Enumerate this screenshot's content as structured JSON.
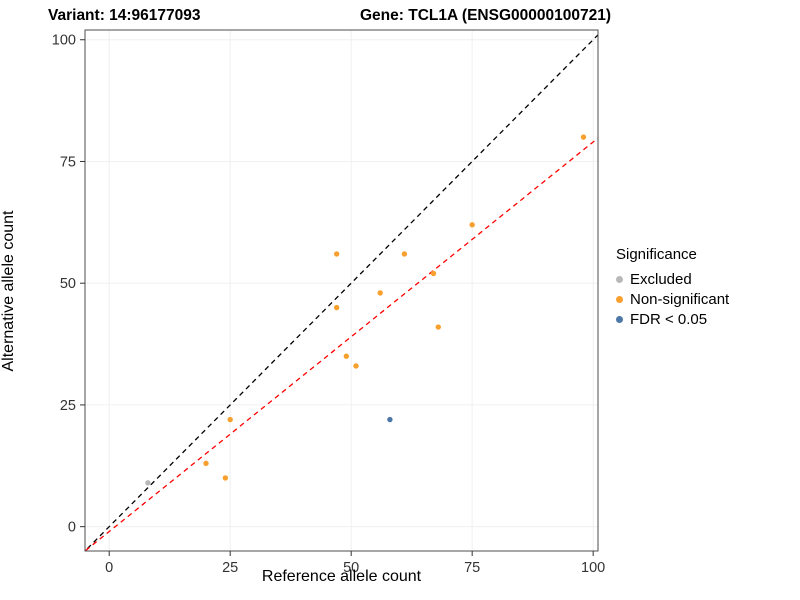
{
  "titles": {
    "variant": "Variant: 14:96177093",
    "gene": "Gene: TCL1A (ENSG00000100721)"
  },
  "chart_data": {
    "type": "scatter",
    "xlabel": "Reference allele count",
    "ylabel": "Alternative allele count",
    "xlim": [
      -5,
      101
    ],
    "ylim": [
      -5,
      102
    ],
    "xticks": [
      0,
      25,
      50,
      75,
      100
    ],
    "yticks": [
      0,
      25,
      50,
      75,
      100
    ],
    "grid": "faint",
    "colors": {
      "excluded": "#B8B8B8",
      "non_significant": "#F8A02E",
      "fdr": "#4C77A6",
      "identity_line": "#000000",
      "fit_line": "#FF0000",
      "panel_border": "#4D4D4D",
      "tick_label": "#333333",
      "gridline": "#F0F0F0"
    },
    "series": [
      {
        "name": "Excluded",
        "color": "#B8B8B8",
        "points": [
          [
            8,
            9
          ]
        ]
      },
      {
        "name": "Non-significant",
        "color": "#F8A02E",
        "points": [
          [
            20,
            13
          ],
          [
            24,
            10
          ],
          [
            25,
            22
          ],
          [
            47,
            45
          ],
          [
            47,
            56
          ],
          [
            49,
            35
          ],
          [
            51,
            33
          ],
          [
            56,
            48
          ],
          [
            61,
            56
          ],
          [
            67,
            52
          ],
          [
            68,
            41
          ],
          [
            75,
            62
          ],
          [
            98,
            80
          ]
        ]
      },
      {
        "name": "FDR < 0.05",
        "color": "#4C77A6",
        "points": [
          [
            58,
            22
          ]
        ]
      }
    ],
    "lines": [
      {
        "name": "identity-line",
        "slope": 1,
        "intercept": 0,
        "color": "#000000",
        "dash": "5,4"
      },
      {
        "name": "fit-line",
        "slope": 0.8,
        "intercept": -1,
        "color": "#FF0000",
        "dash": "5,4"
      }
    ],
    "legend": {
      "title": "Significance",
      "items": [
        {
          "label": "Excluded",
          "color": "#B8B8B8"
        },
        {
          "label": "Non-significant",
          "color": "#F8A02E"
        },
        {
          "label": "FDR < 0.05",
          "color": "#4C77A6"
        }
      ]
    }
  }
}
